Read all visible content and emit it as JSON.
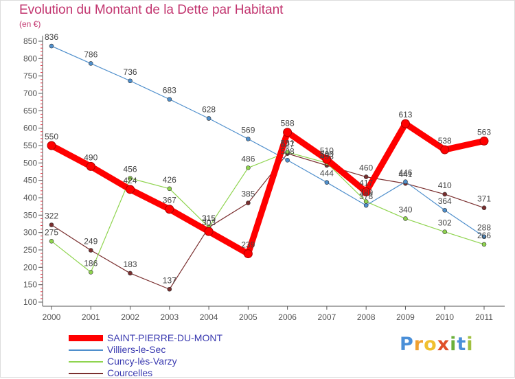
{
  "chart_data": {
    "type": "line",
    "title": "Evolution du Montant de la Dette par Habitant",
    "unit_label": "(en €)",
    "xlabel": "",
    "ylabel": "",
    "x": [
      "2000",
      "2001",
      "2002",
      "2003",
      "2004",
      "2005",
      "2006",
      "2007",
      "2008",
      "2009",
      "2010",
      "2011"
    ],
    "ylim": [
      100,
      850
    ],
    "yticks": [
      100,
      150,
      200,
      250,
      300,
      350,
      400,
      450,
      500,
      550,
      600,
      650,
      700,
      750,
      800,
      850
    ],
    "grid": false,
    "legend_position": "bottom-left",
    "series": [
      {
        "name": "SAINT-PIERRE-DU-MONT",
        "color": "#ff0000",
        "values": [
          550,
          490,
          424,
          367,
          303,
          239,
          588,
          510,
          417,
          613,
          538,
          563
        ],
        "labels": [
          "550",
          "490",
          "424",
          "367",
          "303",
          "239",
          "588",
          "510",
          "417",
          "613",
          "538",
          "563"
        ]
      },
      {
        "name": "Villiers-le-Sec",
        "color": "#4f8fcc",
        "values": [
          836,
          786,
          736,
          683,
          628,
          569,
          508,
          444,
          378,
          446,
          364,
          288
        ],
        "labels": [
          "836",
          "786",
          "736",
          "683",
          "628",
          "569",
          "508",
          "444",
          "378",
          "446",
          "364",
          "288"
        ]
      },
      {
        "name": "Cuncy-lès-Varzy",
        "color": "#8fd44f",
        "values": [
          275,
          186,
          456,
          426,
          315,
          486,
          531,
          500,
          389,
          340,
          302,
          266
        ],
        "labels": [
          "275",
          "186",
          "456",
          "426",
          "315",
          "486",
          "531",
          "500",
          "389",
          "340",
          "302",
          "266"
        ]
      },
      {
        "name": "Courcelles",
        "color": "#7a2f2f",
        "values": [
          322,
          249,
          183,
          137,
          315,
          385,
          527,
          493,
          460,
          441,
          410,
          371
        ],
        "labels": [
          "322",
          "249",
          "183",
          "137",
          "315",
          "385",
          "527",
          "493",
          "460",
          "441",
          "410",
          "371"
        ]
      }
    ]
  },
  "brand": {
    "letters": [
      "P",
      "r",
      "o",
      "x",
      "i",
      "t",
      "i"
    ],
    "colors": [
      "#4a8fd8",
      "#f0a030",
      "#f0c030",
      "#e0502a",
      "#6ab03a",
      "#4a8fd8",
      "#a0c040"
    ]
  }
}
